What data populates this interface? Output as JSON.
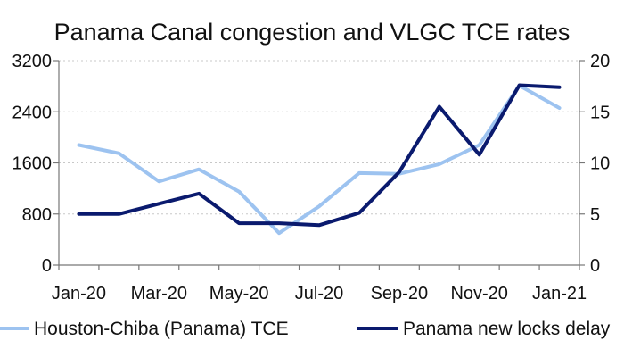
{
  "chart_data": {
    "type": "line",
    "title": "Panama Canal congestion and VLGC TCE rates",
    "categories": [
      "Jan-20",
      "Feb-20",
      "Mar-20",
      "Apr-20",
      "May-20",
      "Jun-20",
      "Jul-20",
      "Aug-20",
      "Sep-20",
      "Oct-20",
      "Nov-20",
      "Dec-20",
      "Jan-21"
    ],
    "x_tick_labels": [
      "Jan-20",
      "Mar-20",
      "May-20",
      "Jul-20",
      "Sep-20",
      "Nov-20",
      "Jan-21"
    ],
    "y_left": {
      "ylim": [
        0,
        3200
      ],
      "ticks": [
        0,
        800,
        1600,
        2400,
        3200
      ]
    },
    "y_right": {
      "ylim": [
        0,
        20
      ],
      "ticks": [
        0,
        5,
        10,
        15,
        20
      ]
    },
    "grid": "horizontal dashed",
    "legend_position": "bottom",
    "series": [
      {
        "name": "Houston-Chiba (Panama) TCE",
        "axis": "left",
        "color": "#9dc3f0",
        "values": [
          1880,
          1750,
          1310,
          1500,
          1150,
          500,
          920,
          1440,
          1430,
          1580,
          1880,
          2810,
          2460
        ]
      },
      {
        "name": "Panama new locks delay",
        "axis": "right",
        "color": "#0a1a6e",
        "values": [
          5.0,
          5.0,
          6.0,
          7.0,
          4.1,
          4.1,
          3.9,
          5.1,
          9.1,
          15.5,
          10.8,
          17.6,
          17.4
        ]
      }
    ]
  }
}
